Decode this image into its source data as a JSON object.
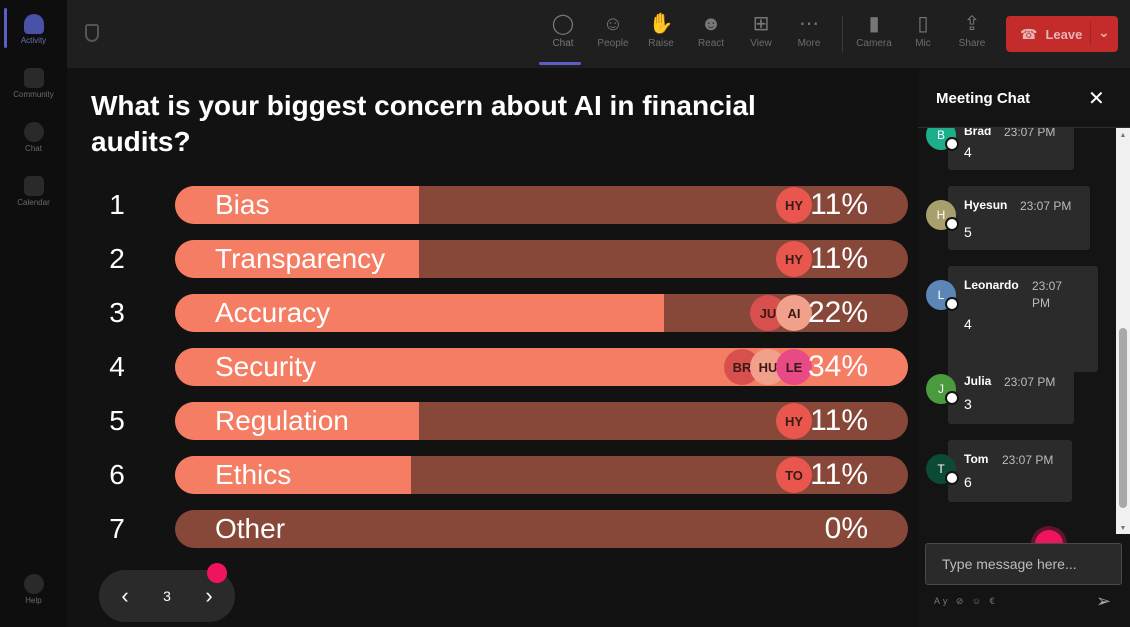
{
  "rail": {
    "items": [
      {
        "label": "Activity",
        "active": true
      },
      {
        "label": "Community",
        "active": false
      },
      {
        "label": "Chat",
        "active": false
      },
      {
        "label": "Calendar",
        "active": false
      }
    ],
    "help_label": "Help"
  },
  "toolbar": {
    "chat": "Chat",
    "people": "People",
    "raise": "Raise",
    "react": "React",
    "view": "View",
    "more": "More",
    "camera": "Camera",
    "mic": "Mic",
    "share": "Share",
    "leave": "Leave"
  },
  "poll": {
    "question": "What is your biggest concern about AI in financial audits?",
    "options": [
      {
        "num": "1",
        "label": "Bias",
        "percent": 11,
        "pct_text": "11%",
        "voters": [
          "HY"
        ]
      },
      {
        "num": "2",
        "label": "Transparency",
        "percent": 11,
        "pct_text": "11%",
        "voters": [
          "HY"
        ]
      },
      {
        "num": "3",
        "label": "Accuracy",
        "percent": 22,
        "pct_text": "22%",
        "voters": [
          "JU",
          "AI"
        ]
      },
      {
        "num": "4",
        "label": "Security",
        "percent": 34,
        "pct_text": "34%",
        "voters": [
          "BR",
          "HU",
          "LE"
        ]
      },
      {
        "num": "5",
        "label": "Regulation",
        "percent": 11,
        "pct_text": "11%",
        "voters": [
          "HY"
        ]
      },
      {
        "num": "6",
        "label": "Ethics",
        "percent": 11,
        "pct_text": "11%",
        "voters": [
          "TO"
        ]
      },
      {
        "num": "7",
        "label": "Other",
        "percent": 0,
        "pct_text": "0%",
        "voters": []
      }
    ]
  },
  "pager": {
    "page": "3"
  },
  "chat": {
    "title": "Meeting Chat",
    "messages": [
      {
        "initial": "B",
        "name": "Brad",
        "time": "23:07 PM",
        "text": "4",
        "color": "#1fae8c"
      },
      {
        "initial": "H",
        "name": "Hyesun",
        "time": "23:07 PM",
        "text": "5",
        "color": "#a89f6d"
      },
      {
        "initial": "L",
        "name": "Leonardo",
        "time": "23:07 PM",
        "text": "4",
        "color": "#5b86b5"
      },
      {
        "initial": "J",
        "name": "Julia",
        "time": "23:07 PM",
        "text": "3",
        "color": "#4c9a3e"
      },
      {
        "initial": "T",
        "name": "Tom",
        "time": "23:07 PM",
        "text": "6",
        "color": "#0c4a36"
      }
    ],
    "input_placeholder": "Type message here...",
    "format_icons": "Ay ⊘ ☺ €"
  },
  "colors": {
    "bar_fill": "#f47d63",
    "bar_track": "#874739",
    "leave": "#c42b2b",
    "accent": "#5b5fc7",
    "pointer": "#f0145f"
  }
}
